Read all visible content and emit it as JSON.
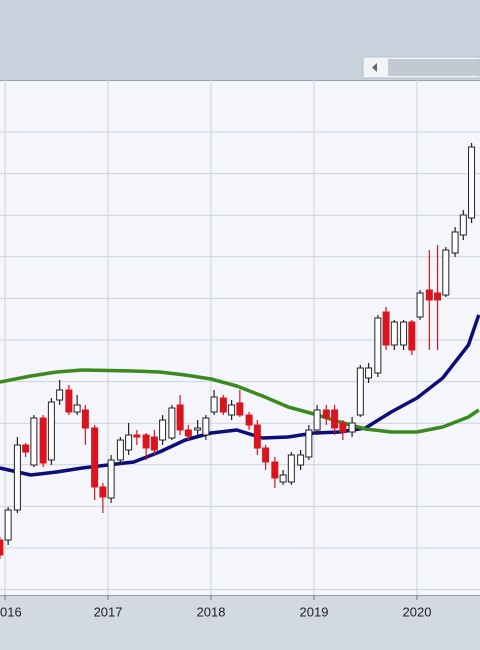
{
  "chart_data": {
    "type": "candlestick",
    "xlim": [
      2015.951,
      2020.612
    ],
    "ylim": [
      0,
      515
    ],
    "xticks": [
      {
        "value": 2016,
        "label": "016"
      },
      2017,
      2018,
      2019,
      2020
    ],
    "grid": true,
    "up_color": "#ffffff",
    "down_color": "#d9141e",
    "x": [
      2015.95,
      2016.03,
      2016.12,
      2016.2,
      2016.28,
      2016.37,
      2016.45,
      2016.53,
      2016.62,
      2016.7,
      2016.78,
      2016.87,
      2016.95,
      2017.03,
      2017.12,
      2017.2,
      2017.28,
      2017.37,
      2017.45,
      2017.53,
      2017.62,
      2017.7,
      2017.78,
      2017.87,
      2017.95,
      2018.03,
      2018.12,
      2018.2,
      2018.28,
      2018.37,
      2018.45,
      2018.53,
      2018.62,
      2018.7,
      2018.78,
      2018.87,
      2018.95,
      2019.03,
      2019.12,
      2019.2,
      2019.28,
      2019.37,
      2019.45,
      2019.53,
      2019.62,
      2019.7,
      2019.78,
      2019.87,
      2019.95,
      2020.03,
      2020.12,
      2020.2,
      2020.28,
      2020.37,
      2020.45,
      2020.53
    ],
    "open": [
      55,
      55,
      85,
      150,
      130,
      177,
      135,
      195,
      205,
      183,
      185,
      167,
      108,
      97,
      135,
      145,
      160,
      160,
      158,
      155,
      157,
      190,
      165,
      165,
      160,
      183,
      197,
      180,
      192,
      180,
      170,
      147,
      133,
      113,
      113,
      130,
      138,
      165,
      185,
      185,
      172,
      163,
      180,
      217,
      222,
      283,
      250,
      250,
      273,
      278,
      305,
      302,
      300,
      342,
      360,
      377
    ],
    "close": [
      40,
      85,
      150,
      143,
      177,
      132,
      193,
      205,
      183,
      190,
      167,
      108,
      98,
      135,
      155,
      160,
      158,
      147,
      145,
      175,
      187,
      165,
      159,
      167,
      177,
      198,
      183,
      190,
      180,
      170,
      147,
      133,
      117,
      120,
      140,
      140,
      165,
      185,
      177,
      167,
      163,
      172,
      227,
      227,
      277,
      250,
      273,
      273,
      245,
      302,
      295,
      295,
      345,
      363,
      380,
      448
    ],
    "high": [
      58,
      88,
      158,
      152,
      180,
      180,
      197,
      215,
      210,
      200,
      190,
      170,
      112,
      140,
      158,
      172,
      165,
      162,
      165,
      180,
      190,
      200,
      170,
      175,
      180,
      205,
      200,
      195,
      205,
      183,
      175,
      150,
      138,
      125,
      143,
      145,
      170,
      190,
      190,
      190,
      175,
      178,
      230,
      232,
      280,
      288,
      275,
      275,
      275,
      305,
      345,
      350,
      348,
      368,
      385,
      452
    ],
    "low": [
      36,
      50,
      82,
      138,
      128,
      128,
      130,
      190,
      180,
      180,
      150,
      95,
      82,
      92,
      130,
      140,
      150,
      135,
      140,
      150,
      155,
      160,
      155,
      160,
      155,
      180,
      180,
      175,
      178,
      165,
      140,
      125,
      107,
      110,
      110,
      125,
      135,
      160,
      170,
      160,
      155,
      158,
      178,
      212,
      218,
      245,
      245,
      245,
      240,
      275,
      245,
      245,
      298,
      338,
      355,
      372
    ],
    "lines": [
      {
        "color": "#0d0d7a",
        "x": [
          2015.95,
          2016.25,
          2016.5,
          2016.75,
          2017.25,
          2017.5,
          2017.75,
          2018.0,
          2018.25,
          2018.5,
          2018.75,
          2019.0,
          2019.25,
          2019.5,
          2019.75,
          2020.0,
          2020.25,
          2020.5,
          2020.6
        ],
        "values": [
          127,
          120,
          123,
          127,
          133,
          143,
          155,
          162,
          165,
          157,
          158,
          162,
          163,
          167,
          183,
          197,
          217,
          250,
          280
        ]
      },
      {
        "color": "#3a8a1f",
        "x": [
          2015.95,
          2016.25,
          2016.5,
          2016.75,
          2017.25,
          2017.5,
          2017.75,
          2018.0,
          2018.25,
          2018.5,
          2018.75,
          2019.0,
          2019.25,
          2019.5,
          2019.75,
          2020.0,
          2020.25,
          2020.5,
          2020.6
        ],
        "values": [
          213,
          219,
          223,
          225,
          224,
          223,
          220,
          216,
          209,
          199,
          188,
          181,
          173,
          166,
          163,
          163,
          168,
          178,
          185
        ]
      }
    ]
  }
}
